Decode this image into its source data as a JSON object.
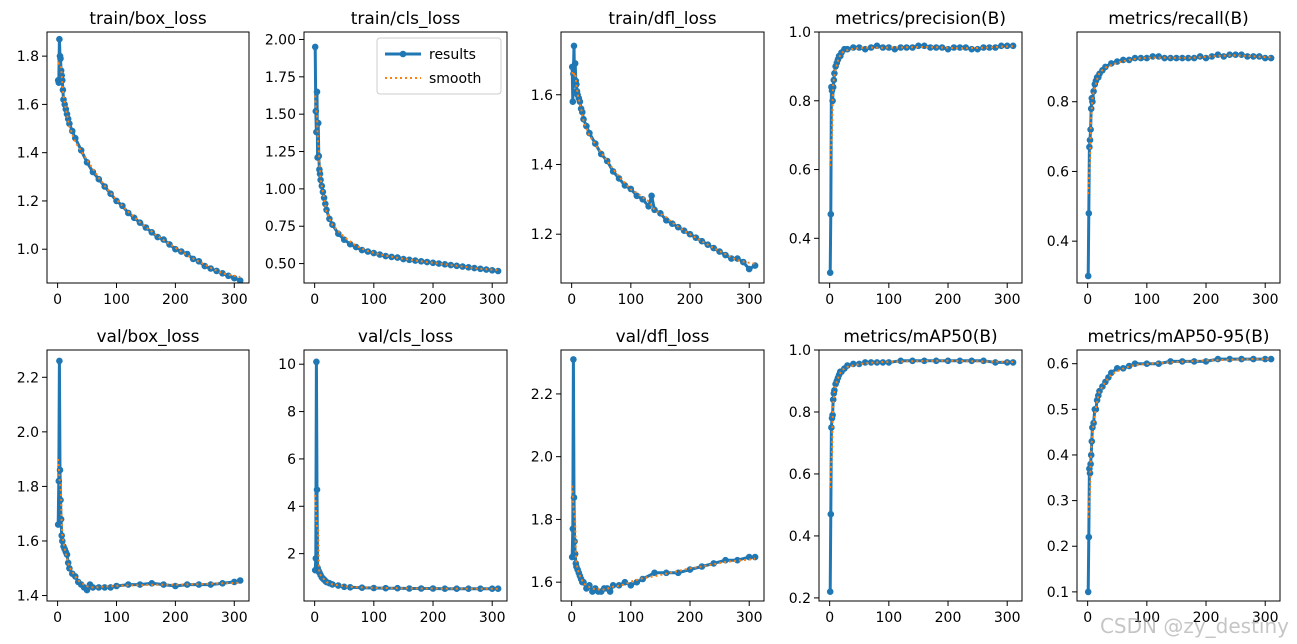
{
  "colors": {
    "results": "#1f77b4",
    "smooth": "#ff7f0e",
    "axis": "#000000"
  },
  "legend": {
    "results_label": "results",
    "smooth_label": "smooth"
  },
  "watermark": "CSDN @zy_destiny",
  "chart_data": [
    {
      "type": "line",
      "title": "train/box_loss",
      "xlim": [
        -18,
        325
      ],
      "ylim": [
        0.86,
        1.9
      ],
      "xticks": [
        0,
        100,
        200,
        300
      ],
      "yticks": [
        1.0,
        1.2,
        1.4,
        1.6,
        1.8
      ],
      "ytick_labels": [
        "1.0",
        "1.2",
        "1.4",
        "1.6",
        "1.8"
      ],
      "legend": false,
      "series": [
        {
          "x": [
            1,
            2,
            3,
            4,
            5,
            6,
            7,
            8,
            9,
            10,
            12,
            14,
            16,
            18,
            20,
            25,
            30,
            40,
            50,
            60,
            70,
            80,
            90,
            100,
            110,
            120,
            130,
            140,
            150,
            160,
            170,
            180,
            190,
            200,
            210,
            220,
            230,
            240,
            250,
            260,
            270,
            280,
            290,
            300,
            310
          ],
          "y": [
            1.7,
            1.69,
            1.87,
            1.8,
            1.79,
            1.74,
            1.72,
            1.7,
            1.66,
            1.62,
            1.6,
            1.58,
            1.56,
            1.54,
            1.52,
            1.49,
            1.46,
            1.41,
            1.36,
            1.32,
            1.29,
            1.26,
            1.23,
            1.2,
            1.18,
            1.15,
            1.13,
            1.11,
            1.09,
            1.07,
            1.05,
            1.04,
            1.02,
            1.0,
            0.99,
            0.98,
            0.96,
            0.95,
            0.93,
            0.92,
            0.91,
            0.9,
            0.89,
            0.88,
            0.87
          ]
        }
      ]
    },
    {
      "type": "line",
      "title": "train/cls_loss",
      "xlim": [
        -18,
        325
      ],
      "ylim": [
        0.37,
        2.05
      ],
      "xticks": [
        0,
        100,
        200,
        300
      ],
      "yticks": [
        0.5,
        0.75,
        1.0,
        1.25,
        1.5,
        1.75,
        2.0
      ],
      "ytick_labels": [
        "0.50",
        "0.75",
        "1.00",
        "1.25",
        "1.50",
        "1.75",
        "2.00"
      ],
      "legend": true,
      "series": [
        {
          "x": [
            1,
            2,
            3,
            4,
            5,
            6,
            7,
            8,
            9,
            10,
            12,
            14,
            16,
            18,
            20,
            25,
            30,
            40,
            50,
            60,
            70,
            80,
            90,
            100,
            110,
            120,
            130,
            140,
            150,
            160,
            170,
            180,
            190,
            200,
            210,
            220,
            230,
            240,
            250,
            260,
            270,
            280,
            290,
            300,
            310
          ],
          "y": [
            1.95,
            1.52,
            1.38,
            1.65,
            1.21,
            1.44,
            1.22,
            1.13,
            1.1,
            1.06,
            1.02,
            0.98,
            0.94,
            0.9,
            0.86,
            0.8,
            0.76,
            0.7,
            0.66,
            0.63,
            0.61,
            0.59,
            0.58,
            0.57,
            0.56,
            0.55,
            0.545,
            0.54,
            0.53,
            0.525,
            0.52,
            0.515,
            0.51,
            0.505,
            0.5,
            0.495,
            0.49,
            0.485,
            0.48,
            0.475,
            0.47,
            0.465,
            0.46,
            0.455,
            0.45
          ]
        }
      ]
    },
    {
      "type": "line",
      "title": "train/dfl_loss",
      "xlim": [
        -18,
        325
      ],
      "ylim": [
        1.06,
        1.78
      ],
      "xticks": [
        0,
        100,
        200,
        300
      ],
      "yticks": [
        1.2,
        1.4,
        1.6
      ],
      "ytick_labels": [
        "1.2",
        "1.4",
        "1.6"
      ],
      "legend": false,
      "series": [
        {
          "x": [
            1,
            2,
            3,
            4,
            5,
            6,
            7,
            8,
            9,
            10,
            12,
            14,
            16,
            18,
            20,
            25,
            30,
            40,
            50,
            60,
            70,
            80,
            90,
            100,
            110,
            120,
            130,
            135,
            140,
            150,
            160,
            170,
            180,
            190,
            200,
            210,
            220,
            230,
            240,
            250,
            260,
            270,
            280,
            290,
            300,
            310
          ],
          "y": [
            1.68,
            1.58,
            1.66,
            1.74,
            1.63,
            1.69,
            1.64,
            1.63,
            1.61,
            1.6,
            1.59,
            1.58,
            1.56,
            1.55,
            1.53,
            1.51,
            1.49,
            1.46,
            1.43,
            1.41,
            1.38,
            1.36,
            1.34,
            1.33,
            1.31,
            1.3,
            1.28,
            1.31,
            1.27,
            1.26,
            1.24,
            1.23,
            1.22,
            1.21,
            1.2,
            1.19,
            1.18,
            1.17,
            1.16,
            1.15,
            1.14,
            1.13,
            1.13,
            1.12,
            1.1,
            1.11
          ]
        }
      ]
    },
    {
      "type": "line",
      "title": "metrics/precision(B)",
      "xlim": [
        -18,
        325
      ],
      "ylim": [
        0.27,
        1.0
      ],
      "xticks": [
        0,
        100,
        200,
        300
      ],
      "yticks": [
        0.4,
        0.6,
        0.8,
        1.0
      ],
      "ytick_labels": [
        "0.4",
        "0.6",
        "0.8",
        "1.0"
      ],
      "legend": false,
      "series": [
        {
          "x": [
            1,
            2,
            3,
            4,
            5,
            6,
            7,
            8,
            10,
            12,
            14,
            16,
            18,
            20,
            25,
            30,
            40,
            50,
            60,
            70,
            80,
            90,
            100,
            110,
            120,
            130,
            140,
            150,
            160,
            170,
            180,
            190,
            200,
            210,
            220,
            230,
            240,
            250,
            260,
            270,
            280,
            290,
            300,
            310
          ],
          "y": [
            0.3,
            0.47,
            0.84,
            0.83,
            0.8,
            0.84,
            0.86,
            0.88,
            0.9,
            0.91,
            0.92,
            0.93,
            0.93,
            0.94,
            0.95,
            0.95,
            0.955,
            0.955,
            0.95,
            0.955,
            0.96,
            0.955,
            0.955,
            0.95,
            0.955,
            0.955,
            0.955,
            0.96,
            0.96,
            0.955,
            0.955,
            0.955,
            0.95,
            0.955,
            0.955,
            0.955,
            0.95,
            0.95,
            0.955,
            0.955,
            0.955,
            0.96,
            0.96,
            0.96
          ]
        }
      ]
    },
    {
      "type": "line",
      "title": "metrics/recall(B)",
      "xlim": [
        -18,
        325
      ],
      "ylim": [
        0.28,
        1.0
      ],
      "xticks": [
        0,
        100,
        200,
        300
      ],
      "yticks": [
        0.4,
        0.6,
        0.8
      ],
      "ytick_labels": [
        "0.4",
        "0.6",
        "0.8"
      ],
      "legend": false,
      "series": [
        {
          "x": [
            1,
            2,
            3,
            4,
            5,
            6,
            7,
            8,
            10,
            12,
            14,
            16,
            18,
            20,
            25,
            30,
            40,
            50,
            60,
            70,
            80,
            90,
            100,
            110,
            120,
            130,
            140,
            150,
            160,
            170,
            180,
            190,
            200,
            210,
            220,
            230,
            240,
            250,
            260,
            270,
            280,
            290,
            300,
            310
          ],
          "y": [
            0.3,
            0.48,
            0.67,
            0.69,
            0.72,
            0.78,
            0.81,
            0.8,
            0.83,
            0.85,
            0.86,
            0.87,
            0.87,
            0.88,
            0.89,
            0.9,
            0.91,
            0.915,
            0.92,
            0.92,
            0.925,
            0.925,
            0.925,
            0.93,
            0.93,
            0.925,
            0.925,
            0.925,
            0.925,
            0.925,
            0.925,
            0.93,
            0.925,
            0.93,
            0.935,
            0.93,
            0.935,
            0.935,
            0.935,
            0.93,
            0.93,
            0.93,
            0.925,
            0.925
          ]
        }
      ]
    },
    {
      "type": "line",
      "title": "val/box_loss",
      "xlim": [
        -18,
        325
      ],
      "ylim": [
        1.38,
        2.3
      ],
      "xticks": [
        0,
        100,
        200,
        300
      ],
      "yticks": [
        1.4,
        1.6,
        1.8,
        2.0,
        2.2
      ],
      "ytick_labels": [
        "1.4",
        "1.6",
        "1.8",
        "2.0",
        "2.2"
      ],
      "legend": false,
      "series": [
        {
          "x": [
            1,
            2,
            3,
            4,
            5,
            6,
            7,
            8,
            10,
            12,
            14,
            16,
            18,
            20,
            25,
            30,
            35,
            40,
            45,
            50,
            55,
            60,
            70,
            80,
            90,
            100,
            120,
            140,
            160,
            180,
            200,
            220,
            240,
            260,
            280,
            300,
            310
          ],
          "y": [
            1.66,
            1.82,
            2.26,
            1.86,
            1.75,
            1.68,
            1.62,
            1.6,
            1.58,
            1.57,
            1.56,
            1.55,
            1.52,
            1.5,
            1.48,
            1.47,
            1.45,
            1.44,
            1.43,
            1.42,
            1.44,
            1.43,
            1.43,
            1.43,
            1.43,
            1.435,
            1.44,
            1.44,
            1.445,
            1.44,
            1.435,
            1.44,
            1.44,
            1.44,
            1.445,
            1.45,
            1.455
          ]
        }
      ]
    },
    {
      "type": "line",
      "title": "val/cls_loss",
      "xlim": [
        -18,
        325
      ],
      "ylim": [
        0.0,
        10.6
      ],
      "xticks": [
        0,
        100,
        200,
        300
      ],
      "yticks": [
        2,
        4,
        6,
        8,
        10
      ],
      "ytick_labels": [
        "2",
        "4",
        "6",
        "8",
        "10"
      ],
      "legend": false,
      "series": [
        {
          "x": [
            1,
            2,
            3,
            4,
            5,
            6,
            7,
            8,
            10,
            12,
            14,
            16,
            18,
            20,
            25,
            30,
            40,
            50,
            60,
            80,
            100,
            120,
            140,
            160,
            180,
            200,
            220,
            240,
            260,
            280,
            300,
            310
          ],
          "y": [
            1.3,
            1.8,
            10.1,
            4.7,
            1.4,
            1.3,
            1.25,
            1.2,
            1.1,
            1.0,
            0.95,
            0.9,
            0.85,
            0.8,
            0.75,
            0.7,
            0.65,
            0.6,
            0.58,
            0.56,
            0.55,
            0.54,
            0.54,
            0.53,
            0.53,
            0.53,
            0.52,
            0.52,
            0.52,
            0.52,
            0.52,
            0.52
          ]
        }
      ]
    },
    {
      "type": "line",
      "title": "val/dfl_loss",
      "xlim": [
        -18,
        325
      ],
      "ylim": [
        1.54,
        2.34
      ],
      "xticks": [
        0,
        100,
        200,
        300
      ],
      "yticks": [
        1.6,
        1.8,
        2.0,
        2.2
      ],
      "ytick_labels": [
        "1.6",
        "1.8",
        "2.0",
        "2.2"
      ],
      "legend": false,
      "series": [
        {
          "x": [
            1,
            2,
            3,
            4,
            5,
            6,
            7,
            8,
            10,
            12,
            14,
            16,
            18,
            20,
            25,
            30,
            35,
            40,
            45,
            50,
            55,
            60,
            65,
            70,
            80,
            90,
            100,
            110,
            120,
            140,
            160,
            180,
            200,
            220,
            240,
            260,
            280,
            300,
            310
          ],
          "y": [
            1.68,
            1.77,
            2.31,
            1.87,
            1.73,
            1.69,
            1.66,
            1.65,
            1.64,
            1.63,
            1.62,
            1.61,
            1.6,
            1.6,
            1.58,
            1.59,
            1.57,
            1.58,
            1.57,
            1.57,
            1.58,
            1.58,
            1.57,
            1.59,
            1.59,
            1.6,
            1.59,
            1.6,
            1.61,
            1.63,
            1.63,
            1.63,
            1.64,
            1.65,
            1.66,
            1.67,
            1.67,
            1.68,
            1.68
          ]
        }
      ]
    },
    {
      "type": "line",
      "title": "metrics/mAP50(B)",
      "xlim": [
        -18,
        325
      ],
      "ylim": [
        0.19,
        1.0
      ],
      "xticks": [
        0,
        100,
        200,
        300
      ],
      "yticks": [
        0.2,
        0.4,
        0.6,
        0.8,
        1.0
      ],
      "ytick_labels": [
        "0.2",
        "0.4",
        "0.6",
        "0.8",
        "1.0"
      ],
      "legend": false,
      "series": [
        {
          "x": [
            1,
            2,
            3,
            4,
            5,
            6,
            7,
            8,
            10,
            12,
            14,
            16,
            18,
            20,
            25,
            30,
            40,
            50,
            60,
            70,
            80,
            90,
            100,
            120,
            140,
            160,
            180,
            200,
            220,
            240,
            260,
            280,
            300,
            310
          ],
          "y": [
            0.22,
            0.47,
            0.75,
            0.78,
            0.79,
            0.84,
            0.86,
            0.87,
            0.89,
            0.9,
            0.91,
            0.92,
            0.93,
            0.93,
            0.94,
            0.95,
            0.955,
            0.955,
            0.96,
            0.96,
            0.96,
            0.96,
            0.96,
            0.965,
            0.965,
            0.965,
            0.965,
            0.965,
            0.965,
            0.965,
            0.965,
            0.96,
            0.96,
            0.96
          ]
        }
      ]
    },
    {
      "type": "line",
      "title": "metrics/mAP50-95(B)",
      "xlim": [
        -18,
        325
      ],
      "ylim": [
        0.08,
        0.63
      ],
      "xticks": [
        0,
        100,
        200,
        300
      ],
      "yticks": [
        0.1,
        0.2,
        0.3,
        0.4,
        0.5,
        0.6
      ],
      "ytick_labels": [
        "0.1",
        "0.2",
        "0.3",
        "0.4",
        "0.5",
        "0.6"
      ],
      "legend": false,
      "series": [
        {
          "x": [
            1,
            2,
            3,
            4,
            5,
            6,
            7,
            8,
            10,
            12,
            14,
            16,
            18,
            20,
            25,
            30,
            35,
            40,
            50,
            60,
            70,
            80,
            100,
            120,
            140,
            160,
            180,
            200,
            220,
            240,
            260,
            280,
            300,
            310
          ],
          "y": [
            0.1,
            0.22,
            0.37,
            0.36,
            0.38,
            0.4,
            0.43,
            0.46,
            0.47,
            0.5,
            0.5,
            0.52,
            0.53,
            0.54,
            0.55,
            0.56,
            0.57,
            0.58,
            0.59,
            0.59,
            0.595,
            0.6,
            0.6,
            0.6,
            0.605,
            0.605,
            0.605,
            0.605,
            0.61,
            0.61,
            0.61,
            0.61,
            0.61,
            0.61
          ]
        }
      ]
    }
  ]
}
